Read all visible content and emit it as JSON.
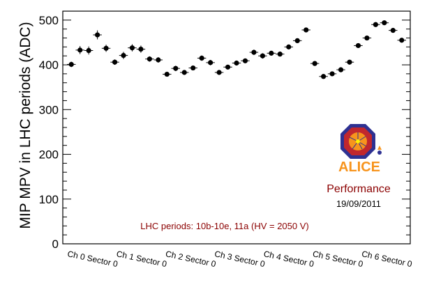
{
  "chart_data": {
    "type": "scatter",
    "title": "",
    "xlabel": "",
    "ylabel": "MIP MPV in LHC periods (ADC)",
    "ylim": [
      0,
      520
    ],
    "yticks": [
      0,
      100,
      200,
      300,
      400,
      500
    ],
    "categories": [
      "Ch 0 Sector 0",
      "Ch 1 Sector 0",
      "Ch 2 Sector 0",
      "Ch 3 Sector 0",
      "Ch 4 Sector 0",
      "Ch 5 Sector 0",
      "Ch 6 Sector 0"
    ],
    "series": [
      {
        "name": "MIP MPV",
        "values": [
          401,
          433,
          432,
          467,
          437,
          406,
          421,
          438,
          435,
          413,
          411,
          379,
          392,
          383,
          393,
          415,
          405,
          383,
          395,
          404,
          409,
          428,
          420,
          426,
          424,
          440,
          454,
          478,
          403,
          374,
          380,
          389,
          406,
          443,
          460,
          490,
          494,
          477,
          455
        ],
        "errors": [
          6,
          9,
          9,
          10,
          8,
          6,
          8,
          8,
          8,
          6,
          6,
          5,
          6,
          5,
          5,
          6,
          6,
          5,
          5,
          5,
          5,
          6,
          6,
          5,
          5,
          5,
          5,
          5,
          5,
          5,
          5,
          5,
          5,
          5,
          5,
          5,
          5,
          5,
          5
        ]
      }
    ],
    "annotation": "LHC periods: 10b-10e, 11a (HV = 2050 V)",
    "performance_label": "Performance",
    "date": "19/09/2011",
    "logo_text": "ALICE"
  },
  "colors": {
    "marker": "#000000",
    "annotation": "#8b0000",
    "logo_orange": "#f7941d",
    "logo_blue": "#2e3192"
  }
}
